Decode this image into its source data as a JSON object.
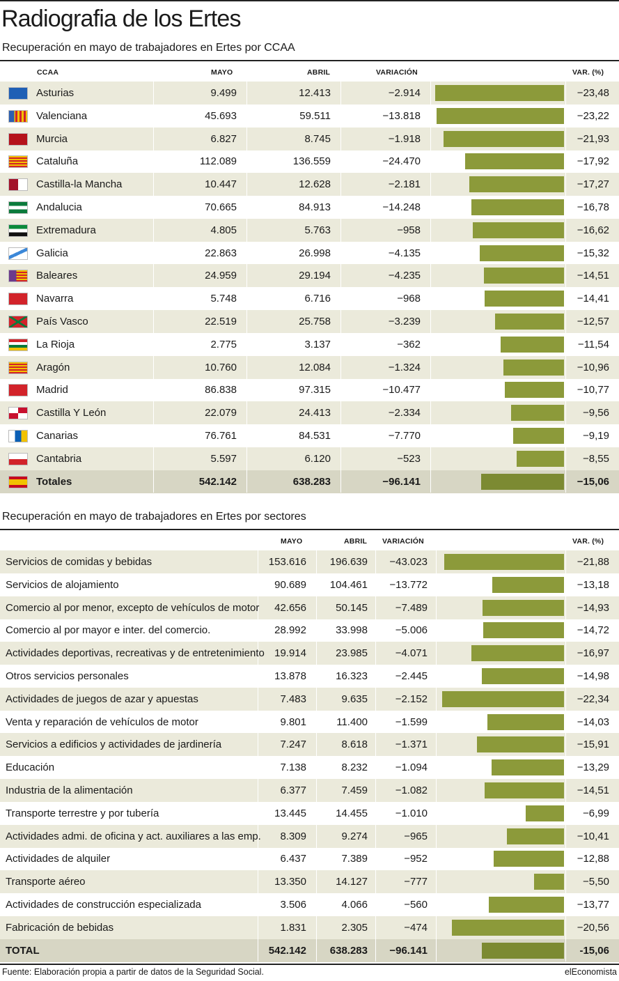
{
  "header": {
    "title": "Radiografia de los Ertes",
    "subtitle_ccaa": "Recuperación en mayo de trabajadores en Ertes por CCAA",
    "subtitle_sectores": "Recuperación en mayo de trabajadores en Ertes por sectores"
  },
  "columns": {
    "ccaa": "CCAA",
    "mayo": "MAYO",
    "abril": "ABRIL",
    "variacion": "VARIACIÓN",
    "var_pct": "VAR. (%)"
  },
  "colors": {
    "bar": "#8c9a3a",
    "bar_total": "#7c8a32",
    "stripe": "#ebeadb",
    "total_row": "#d7d6c4"
  },
  "chart_data": [
    {
      "type": "table",
      "title": "Recuperación en mayo de trabajadores en Ertes por CCAA",
      "columns": [
        "CCAA",
        "MAYO",
        "ABRIL",
        "VARIACIÓN",
        "VAR. (%)"
      ],
      "rows": [
        {
          "name": "Asturias",
          "flag": "asturias-flag",
          "mayo": "9.499",
          "abril": "12.413",
          "variacion": "−2.914",
          "pct_label": "−23,48",
          "pct": -23.48
        },
        {
          "name": "Valenciana",
          "flag": "valencia-flag",
          "mayo": "45.693",
          "abril": "59.511",
          "variacion": "−13.818",
          "pct_label": "−23,22",
          "pct": -23.22
        },
        {
          "name": "Murcia",
          "flag": "murcia-flag",
          "mayo": "6.827",
          "abril": "8.745",
          "variacion": "−1.918",
          "pct_label": "−21,93",
          "pct": -21.93
        },
        {
          "name": "Cataluña",
          "flag": "cataluna-flag",
          "mayo": "112.089",
          "abril": "136.559",
          "variacion": "−24.470",
          "pct_label": "−17,92",
          "pct": -17.92
        },
        {
          "name": "Castilla-la Mancha",
          "flag": "castilla-la-mancha-flag",
          "mayo": "10.447",
          "abril": "12.628",
          "variacion": "−2.181",
          "pct_label": "−17,27",
          "pct": -17.27
        },
        {
          "name": "Andalucia",
          "flag": "andalucia-flag",
          "mayo": "70.665",
          "abril": "84.913",
          "variacion": "−14.248",
          "pct_label": "−16,78",
          "pct": -16.78
        },
        {
          "name": "Extremadura",
          "flag": "extremadura-flag",
          "mayo": "4.805",
          "abril": "5.763",
          "variacion": "−958",
          "pct_label": "−16,62",
          "pct": -16.62
        },
        {
          "name": "Galicia",
          "flag": "galicia-flag",
          "mayo": "22.863",
          "abril": "26.998",
          "variacion": "−4.135",
          "pct_label": "−15,32",
          "pct": -15.32
        },
        {
          "name": "Baleares",
          "flag": "baleares-flag",
          "mayo": "24.959",
          "abril": "29.194",
          "variacion": "−4.235",
          "pct_label": "−14,51",
          "pct": -14.51
        },
        {
          "name": "Navarra",
          "flag": "navarra-flag",
          "mayo": "5.748",
          "abril": "6.716",
          "variacion": "−968",
          "pct_label": "−14,41",
          "pct": -14.41
        },
        {
          "name": "País Vasco",
          "flag": "pais-vasco-flag",
          "mayo": "22.519",
          "abril": "25.758",
          "variacion": "−3.239",
          "pct_label": "−12,57",
          "pct": -12.57
        },
        {
          "name": "La Rioja",
          "flag": "la-rioja-flag",
          "mayo": "2.775",
          "abril": "3.137",
          "variacion": "−362",
          "pct_label": "−11,54",
          "pct": -11.54
        },
        {
          "name": "Aragón",
          "flag": "aragon-flag",
          "mayo": "10.760",
          "abril": "12.084",
          "variacion": "−1.324",
          "pct_label": "−10,96",
          "pct": -10.96
        },
        {
          "name": "Madrid",
          "flag": "madrid-flag",
          "mayo": "86.838",
          "abril": "97.315",
          "variacion": "−10.477",
          "pct_label": "−10,77",
          "pct": -10.77
        },
        {
          "name": "Castilla Y León",
          "flag": "castilla-y-leon-flag",
          "mayo": "22.079",
          "abril": "24.413",
          "variacion": "−2.334",
          "pct_label": "−9,56",
          "pct": -9.56
        },
        {
          "name": "Canarias",
          "flag": "canarias-flag",
          "mayo": "76.761",
          "abril": "84.531",
          "variacion": "−7.770",
          "pct_label": "−9,19",
          "pct": -9.19
        },
        {
          "name": "Cantabria",
          "flag": "cantabria-flag",
          "mayo": "5.597",
          "abril": "6.120",
          "variacion": "−523",
          "pct_label": "−8,55",
          "pct": -8.55
        }
      ],
      "total": {
        "name": "Totales",
        "flag": "espana-flag",
        "mayo": "542.142",
        "abril": "638.283",
        "variacion": "−96.141",
        "pct_label": "−15,06",
        "pct": -15.06
      }
    },
    {
      "type": "table",
      "title": "Recuperación en mayo de trabajadores en Ertes por sectores",
      "columns": [
        "",
        "MAYO",
        "ABRIL",
        "VARIACIÓN",
        "VAR. (%)"
      ],
      "rows": [
        {
          "name": "Servicios de comidas y bebidas",
          "mayo": "153.616",
          "abril": "196.639",
          "variacion": "−43.023",
          "pct_label": "−21,88",
          "pct": -21.88
        },
        {
          "name": "Servicios de alojamiento",
          "mayo": "90.689",
          "abril": "104.461",
          "variacion": "−13.772",
          "pct_label": "−13,18",
          "pct": -13.18
        },
        {
          "name": "Comercio al por menor, excepto de vehículos de motor",
          "mayo": "42.656",
          "abril": "50.145",
          "variacion": "−7.489",
          "pct_label": "−14,93",
          "pct": -14.93
        },
        {
          "name": "Comercio al por mayor e inter. del comercio.",
          "mayo": "28.992",
          "abril": "33.998",
          "variacion": "−5.006",
          "pct_label": "−14,72",
          "pct": -14.72
        },
        {
          "name": "Actividades deportivas, recreativas y de entretenimiento",
          "mayo": "19.914",
          "abril": "23.985",
          "variacion": "−4.071",
          "pct_label": "−16,97",
          "pct": -16.97
        },
        {
          "name": "Otros servicios personales",
          "mayo": "13.878",
          "abril": "16.323",
          "variacion": "−2.445",
          "pct_label": "−14,98",
          "pct": -14.98
        },
        {
          "name": "Actividades de juegos de azar y apuestas",
          "mayo": "7.483",
          "abril": "9.635",
          "variacion": "−2.152",
          "pct_label": "−22,34",
          "pct": -22.34
        },
        {
          "name": "Venta y reparación de vehículos de motor",
          "mayo": "9.801",
          "abril": "11.400",
          "variacion": "−1.599",
          "pct_label": "−14,03",
          "pct": -14.03
        },
        {
          "name": "Servicios a edificios y actividades de jardinería",
          "mayo": "7.247",
          "abril": "8.618",
          "variacion": "−1.371",
          "pct_label": "−15,91",
          "pct": -15.91
        },
        {
          "name": "Educación",
          "mayo": "7.138",
          "abril": "8.232",
          "variacion": "−1.094",
          "pct_label": "−13,29",
          "pct": -13.29
        },
        {
          "name": "Industria de la alimentación",
          "mayo": "6.377",
          "abril": "7.459",
          "variacion": "−1.082",
          "pct_label": "−14,51",
          "pct": -14.51
        },
        {
          "name": "Transporte terrestre y por tubería",
          "mayo": "13.445",
          "abril": "14.455",
          "variacion": "−1.010",
          "pct_label": "−6,99",
          "pct": -6.99
        },
        {
          "name": "Actividades admi. de oficina y act. auxiliares a las emp.",
          "mayo": "8.309",
          "abril": "9.274",
          "variacion": "−965",
          "pct_label": "−10,41",
          "pct": -10.41
        },
        {
          "name": "Actividades de alquiler",
          "mayo": "6.437",
          "abril": "7.389",
          "variacion": "−952",
          "pct_label": "−12,88",
          "pct": -12.88
        },
        {
          "name": "Transporte aéreo",
          "mayo": "13.350",
          "abril": "14.127",
          "variacion": "−777",
          "pct_label": "−5,50",
          "pct": -5.5
        },
        {
          "name": "Actividades de construcción especializada",
          "mayo": "3.506",
          "abril": "4.066",
          "variacion": "−560",
          "pct_label": "−13,77",
          "pct": -13.77
        },
        {
          "name": "Fabricación de bebidas",
          "mayo": "1.831",
          "abril": "2.305",
          "variacion": "−474",
          "pct_label": "−20,56",
          "pct": -20.56
        }
      ],
      "total": {
        "name": "TOTAL",
        "mayo": "542.142",
        "abril": "638.283",
        "variacion": "−96.141",
        "pct_label": "-15,06",
        "pct": -15.06
      }
    }
  ],
  "footer": {
    "source": "Fuente: Elaboración propia a partir de datos de la Seguridad Social.",
    "brand": "elEconomista"
  }
}
